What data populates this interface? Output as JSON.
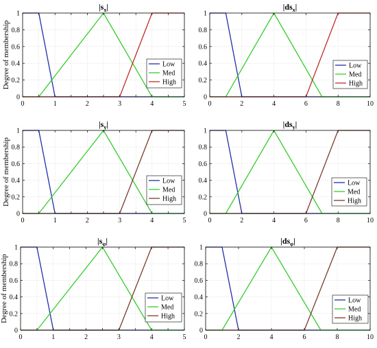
{
  "colors": {
    "low": "#1f2ea8",
    "med": "#36cc2c",
    "high_a": "#c22a2a",
    "high_b": "#7a3b2c",
    "grid": "#d9d9d9",
    "axis": "#000000"
  },
  "legend_labels": [
    "Low",
    "Med",
    "High"
  ],
  "chart_data": [
    {
      "type": "line",
      "title_main": "|s",
      "title_sub": "x",
      "title_end": "|",
      "ylabel": "Degree of membership",
      "xlim": [
        0,
        5
      ],
      "ylim": [
        0,
        1
      ],
      "xticks": [
        "0",
        "0.5",
        "1",
        "1.5",
        "2",
        "2.5",
        "3",
        "3.5",
        "4",
        "4.5",
        "5"
      ],
      "yticks": [
        "0",
        "0.2",
        "0.4",
        "0.6",
        "0.8",
        "1"
      ],
      "grid": true,
      "legend_position": "right",
      "series": [
        {
          "name": "Low",
          "color_key": "low",
          "x": [
            0,
            0.5,
            1,
            5
          ],
          "y": [
            1,
            1,
            0,
            0
          ]
        },
        {
          "name": "Med",
          "color_key": "med",
          "x": [
            0,
            0.5,
            2.5,
            4,
            5
          ],
          "y": [
            0,
            0,
            1,
            0,
            0
          ]
        },
        {
          "name": "High",
          "color_key": "high_a",
          "x": [
            0,
            3,
            4,
            5
          ],
          "y": [
            0,
            0,
            1,
            1
          ]
        }
      ]
    },
    {
      "type": "line",
      "title_main": "|ds",
      "title_sub": "x",
      "title_end": "|",
      "ylabel": "",
      "xlim": [
        0,
        10
      ],
      "ylim": [
        0,
        1
      ],
      "xticks": [
        "0",
        "2",
        "4",
        "6",
        "8",
        "10"
      ],
      "yticks": [
        "0",
        "0.2",
        "0.4",
        "0.6",
        "0.8",
        "1"
      ],
      "grid": true,
      "legend_position": "right",
      "series": [
        {
          "name": "Low",
          "color_key": "low",
          "x": [
            0,
            1,
            2,
            10
          ],
          "y": [
            1,
            1,
            0,
            0
          ]
        },
        {
          "name": "Med",
          "color_key": "med",
          "x": [
            0,
            1,
            4,
            7,
            10
          ],
          "y": [
            0,
            0,
            1,
            0,
            0
          ]
        },
        {
          "name": "High",
          "color_key": "high_a",
          "x": [
            0,
            6,
            8,
            10
          ],
          "y": [
            0,
            0,
            1,
            1
          ]
        }
      ]
    },
    {
      "type": "line",
      "title_main": "|s",
      "title_sub": "y",
      "title_end": "|",
      "ylabel": "Degree of membership",
      "xlim": [
        0,
        5
      ],
      "ylim": [
        0,
        1
      ],
      "xticks": [
        "0",
        "0.5",
        "1",
        "1.5",
        "2",
        "2.5",
        "3",
        "3.5",
        "4",
        "4.5",
        "5"
      ],
      "yticks": [
        "0",
        "0.2",
        "0.4",
        "0.6",
        "0.8",
        "1"
      ],
      "grid": true,
      "legend_position": "right",
      "series": [
        {
          "name": "Low",
          "color_key": "low",
          "x": [
            0,
            0.5,
            1,
            5
          ],
          "y": [
            1,
            1,
            0,
            0
          ]
        },
        {
          "name": "Med",
          "color_key": "med",
          "x": [
            0,
            0.5,
            2.5,
            4,
            5
          ],
          "y": [
            0,
            0,
            1,
            0,
            0
          ]
        },
        {
          "name": "High",
          "color_key": "high_b",
          "x": [
            0,
            3,
            4,
            5
          ],
          "y": [
            0,
            0,
            1,
            1
          ]
        }
      ]
    },
    {
      "type": "line",
      "title_main": "|ds",
      "title_sub": "y",
      "title_end": "|",
      "ylabel": "",
      "xlim": [
        0,
        10
      ],
      "ylim": [
        0,
        1
      ],
      "xticks": [
        "0",
        "2",
        "4",
        "6",
        "8",
        "10"
      ],
      "yticks": [
        "0",
        "0.2",
        "0.4",
        "0.6",
        "0.8",
        "1"
      ],
      "grid": true,
      "legend_position": "right",
      "series": [
        {
          "name": "Low",
          "color_key": "low",
          "x": [
            0,
            1,
            2,
            10
          ],
          "y": [
            1,
            1,
            0,
            0
          ]
        },
        {
          "name": "Med",
          "color_key": "med",
          "x": [
            0,
            1,
            4,
            7,
            10
          ],
          "y": [
            0,
            0,
            1,
            0,
            0
          ]
        },
        {
          "name": "High",
          "color_key": "high_b",
          "x": [
            0,
            6,
            8,
            10
          ],
          "y": [
            0,
            0,
            1,
            1
          ]
        }
      ]
    },
    {
      "type": "line",
      "title_main": "|s",
      "title_sub": "φ",
      "title_end": "|",
      "ylabel": "Degree of membership",
      "xlim": [
        0,
        5
      ],
      "ylim": [
        0,
        1
      ],
      "xticks": [
        "0",
        "0.5",
        "1",
        "1.5",
        "2",
        "2.5",
        "3",
        "3.5",
        "4",
        "4.5",
        "5"
      ],
      "yticks": [
        "0",
        "0.2",
        "0.4",
        "0.6",
        "0.8",
        "1"
      ],
      "grid": true,
      "legend_position": "right",
      "series": [
        {
          "name": "Low",
          "color_key": "low",
          "x": [
            0,
            0.5,
            1,
            5
          ],
          "y": [
            1,
            1,
            0,
            0
          ]
        },
        {
          "name": "Med",
          "color_key": "med",
          "x": [
            0,
            0.5,
            2.5,
            4,
            5
          ],
          "y": [
            0,
            0,
            1,
            0,
            0
          ]
        },
        {
          "name": "High",
          "color_key": "high_b",
          "x": [
            0,
            3,
            4,
            5
          ],
          "y": [
            0,
            0,
            1,
            1
          ]
        }
      ]
    },
    {
      "type": "line",
      "title_main": "|ds",
      "title_sub": "φ",
      "title_end": "|",
      "ylabel": "",
      "xlim": [
        0,
        10
      ],
      "ylim": [
        0,
        1
      ],
      "xticks": [
        "0",
        "2",
        "4",
        "6",
        "8",
        "10"
      ],
      "yticks": [
        "0",
        "0.2",
        "0.4",
        "0.6",
        "0.8",
        "1"
      ],
      "grid": true,
      "legend_position": "right",
      "series": [
        {
          "name": "Low",
          "color_key": "low",
          "x": [
            0,
            1,
            2,
            10
          ],
          "y": [
            1,
            1,
            0,
            0
          ]
        },
        {
          "name": "Med",
          "color_key": "med",
          "x": [
            0,
            1,
            4,
            7,
            10
          ],
          "y": [
            0,
            0,
            1,
            0,
            0
          ]
        },
        {
          "name": "High",
          "color_key": "high_b",
          "x": [
            0,
            6,
            8,
            10
          ],
          "y": [
            0,
            0,
            1,
            1
          ]
        }
      ]
    }
  ]
}
